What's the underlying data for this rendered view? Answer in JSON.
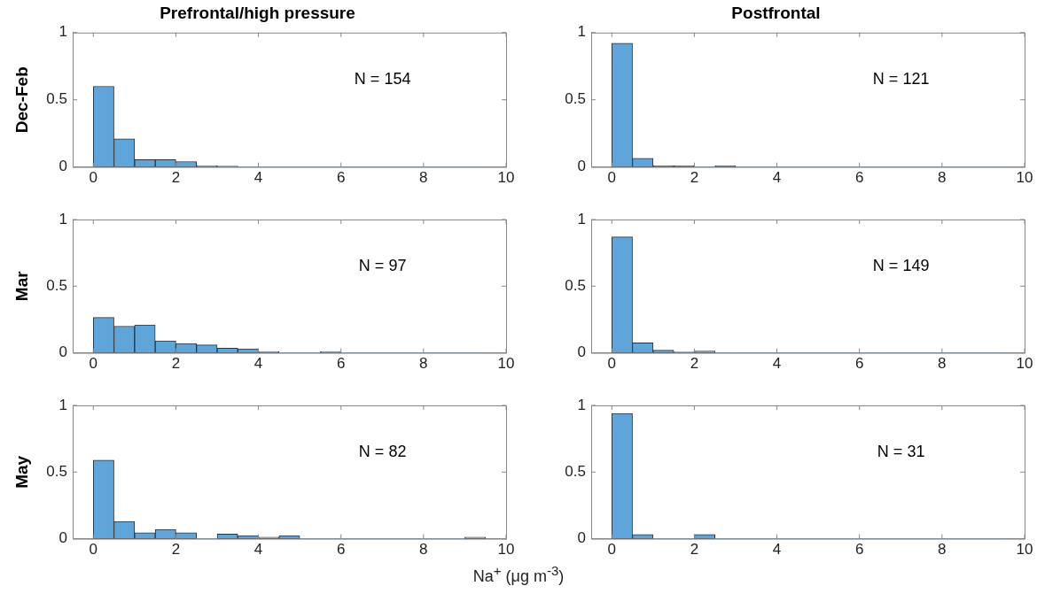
{
  "chart_data": [
    {
      "type": "histogram",
      "title": "Prefrontal/high pressure",
      "ylabel": "Dec-Feb",
      "color": "#5fa5d9",
      "bins": [
        0,
        0.5,
        1,
        1.5,
        2,
        2.5,
        3,
        3.5,
        4,
        4.5,
        5,
        5.5,
        6,
        6.5,
        7,
        7.5,
        8,
        8.5,
        9,
        9.5
      ],
      "values": [
        0.6,
        0.21,
        0.055,
        0.055,
        0.04,
        0.01,
        0.007,
        0,
        0,
        0,
        0,
        0,
        0,
        0,
        0,
        0,
        0,
        0,
        0
      ],
      "xlim": [
        -0.5,
        10
      ],
      "xticks": [
        0,
        2,
        4,
        6,
        8,
        10
      ],
      "ylim": [
        0,
        1
      ],
      "yticks": [
        0,
        0.5,
        1
      ],
      "annotations": [
        "N = 154"
      ]
    },
    {
      "type": "histogram",
      "title": "Postfrontal",
      "color": "#5fa5d9",
      "bins": [
        0,
        0.5,
        1,
        1.5,
        2,
        2.5,
        3,
        3.5,
        4,
        4.5,
        5,
        5.5,
        6,
        6.5,
        7,
        7.5,
        8,
        8.5,
        9,
        9.5
      ],
      "values": [
        0.92,
        0.065,
        0.008,
        0.008,
        0,
        0.008,
        0,
        0,
        0,
        0,
        0,
        0,
        0,
        0,
        0,
        0,
        0,
        0,
        0
      ],
      "xlim": [
        -0.5,
        10
      ],
      "xticks": [
        0,
        2,
        4,
        6,
        8,
        10
      ],
      "ylim": [
        0,
        1
      ],
      "yticks": [
        0,
        0.5,
        1
      ],
      "annotations": [
        "N = 121"
      ]
    },
    {
      "type": "histogram",
      "ylabel": "Mar",
      "color": "#5fa5d9",
      "bins": [
        0,
        0.5,
        1,
        1.5,
        2,
        2.5,
        3,
        3.5,
        4,
        4.5,
        5,
        5.5,
        6,
        6.5,
        7,
        7.5,
        8,
        8.5,
        9,
        9.5
      ],
      "values": [
        0.265,
        0.2,
        0.21,
        0.09,
        0.07,
        0.06,
        0.035,
        0.03,
        0.01,
        0,
        0,
        0.01,
        0,
        0,
        0,
        0,
        0,
        0,
        0
      ],
      "xlim": [
        -0.5,
        10
      ],
      "xticks": [
        0,
        2,
        4,
        6,
        8,
        10
      ],
      "ylim": [
        0,
        1
      ],
      "yticks": [
        0,
        0.5,
        1
      ],
      "annotations": [
        "N = 97"
      ]
    },
    {
      "type": "histogram",
      "color": "#5fa5d9",
      "bins": [
        0,
        0.5,
        1,
        1.5,
        2,
        2.5,
        3,
        3.5,
        4,
        4.5,
        5,
        5.5,
        6,
        6.5,
        7,
        7.5,
        8,
        8.5,
        9,
        9.5
      ],
      "values": [
        0.87,
        0.075,
        0.02,
        0.007,
        0.013,
        0,
        0,
        0,
        0,
        0,
        0,
        0,
        0,
        0,
        0,
        0,
        0,
        0,
        0
      ],
      "xlim": [
        -0.5,
        10
      ],
      "xticks": [
        0,
        2,
        4,
        6,
        8,
        10
      ],
      "ylim": [
        0,
        1
      ],
      "yticks": [
        0,
        0.5,
        1
      ],
      "annotations": [
        "N = 149"
      ]
    },
    {
      "type": "histogram",
      "ylabel": "May",
      "xlabel": "Na$^{+}$ (μg m$^{-3}$)",
      "color": "#5fa5d9",
      "bins": [
        0,
        0.5,
        1,
        1.5,
        2,
        2.5,
        3,
        3.5,
        4,
        4.5,
        5,
        5.5,
        6,
        6.5,
        7,
        7.5,
        8,
        8.5,
        9,
        9.5
      ],
      "values": [
        0.59,
        0.13,
        0.045,
        0.07,
        0.045,
        0,
        0.035,
        0.024,
        0.012,
        0.024,
        0,
        0,
        0,
        0,
        0,
        0,
        0,
        0,
        0.012
      ],
      "xlim": [
        -0.5,
        10
      ],
      "xticks": [
        0,
        2,
        4,
        6,
        8,
        10
      ],
      "ylim": [
        0,
        1
      ],
      "yticks": [
        0,
        0.5,
        1
      ],
      "annotations": [
        "N = 82"
      ]
    },
    {
      "type": "histogram",
      "color": "#5fa5d9",
      "bins": [
        0,
        0.5,
        1,
        1.5,
        2,
        2.5,
        3,
        3.5,
        4,
        4.5,
        5,
        5.5,
        6,
        6.5,
        7,
        7.5,
        8,
        8.5,
        9,
        9.5
      ],
      "values": [
        0.94,
        0.032,
        0,
        0,
        0.032,
        0,
        0,
        0,
        0,
        0,
        0,
        0,
        0,
        0,
        0,
        0,
        0,
        0,
        0
      ],
      "xlim": [
        -0.5,
        10
      ],
      "xticks": [
        0,
        2,
        4,
        6,
        8,
        10
      ],
      "ylim": [
        0,
        1
      ],
      "yticks": [
        0,
        0.5,
        1
      ],
      "annotations": [
        "N = 31"
      ]
    }
  ]
}
